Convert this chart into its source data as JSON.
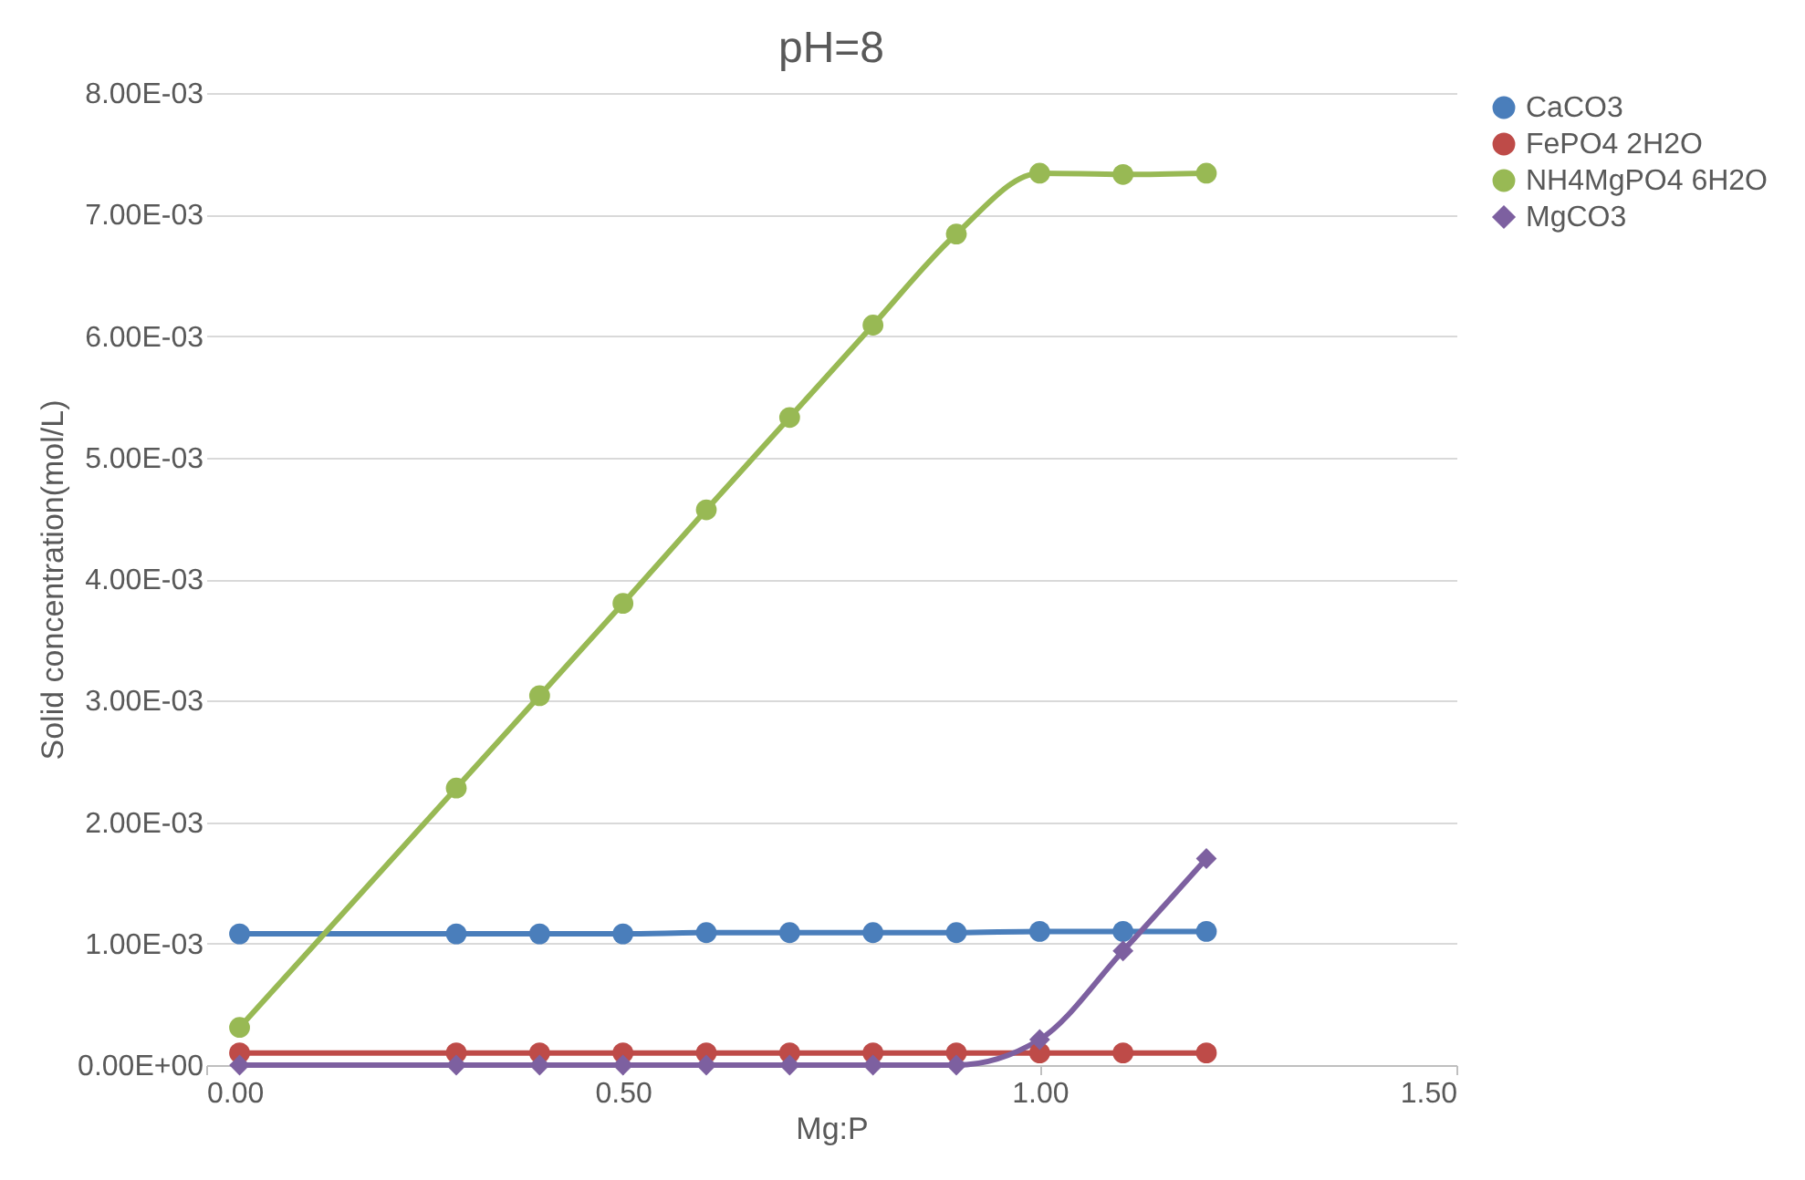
{
  "chart_data": {
    "type": "line",
    "title": "pH=8",
    "xlabel": "Mg:P",
    "ylabel": "Solid concentration(mol/L)",
    "x": [
      0.04,
      0.3,
      0.4,
      0.5,
      0.6,
      0.7,
      0.8,
      0.9,
      1.0,
      1.1,
      1.2
    ],
    "series": [
      {
        "name": "CaCO3",
        "color": "#4a7ebb",
        "marker": "circle",
        "values": [
          0.00108,
          0.00108,
          0.00108,
          0.00108,
          0.00109,
          0.00109,
          0.00109,
          0.00109,
          0.0011,
          0.0011,
          0.0011
        ]
      },
      {
        "name": "FePO4 2H2O",
        "color": "#be4b48",
        "marker": "circle",
        "values": [
          0.0001,
          0.0001,
          0.0001,
          0.0001,
          0.0001,
          0.0001,
          0.0001,
          0.0001,
          0.0001,
          0.0001,
          0.0001
        ]
      },
      {
        "name": "NH4MgPO4 6H2O",
        "color": "#98b954",
        "marker": "circle",
        "values": [
          0.00031,
          0.00228,
          0.00304,
          0.0038,
          0.00457,
          0.00533,
          0.00609,
          0.00684,
          0.00734,
          0.00733,
          0.00734
        ]
      },
      {
        "name": "MgCO3",
        "color": "#7d60a0",
        "marker": "diamond",
        "values": [
          0,
          0,
          0,
          0,
          0,
          0,
          0,
          0,
          0.00021,
          0.00094,
          0.0017
        ]
      }
    ],
    "xlim": [
      0,
      1.5
    ],
    "xticks": [
      {
        "value": 0,
        "label": "0.00"
      },
      {
        "value": 0.5,
        "label": "0.50"
      },
      {
        "value": 1.0,
        "label": "1.00"
      },
      {
        "value": 1.5,
        "label": "1.50"
      }
    ],
    "ylim": [
      0,
      0.008
    ],
    "yticks": [
      {
        "value": 0,
        "label": "0.00E+00"
      },
      {
        "value": 0.001,
        "label": "1.00E-03"
      },
      {
        "value": 0.002,
        "label": "2.00E-03"
      },
      {
        "value": 0.003,
        "label": "3.00E-03"
      },
      {
        "value": 0.004,
        "label": "4.00E-03"
      },
      {
        "value": 0.005,
        "label": "5.00E-03"
      },
      {
        "value": 0.006,
        "label": "6.00E-03"
      },
      {
        "value": 0.007,
        "label": "7.00E-03"
      },
      {
        "value": 0.008,
        "label": "8.00E-03"
      }
    ],
    "grid": "y",
    "legend": "right",
    "line_style": "solid"
  }
}
